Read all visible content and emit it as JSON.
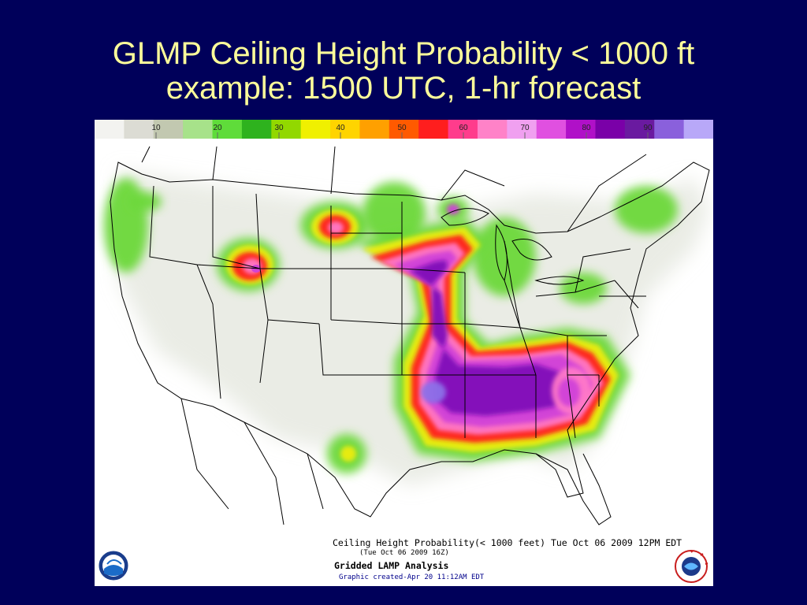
{
  "slide": {
    "title_line1": "GLMP Ceiling Height Probability < 1000 ft",
    "title_line2": "example: 1500 UTC, 1-hr forecast"
  },
  "colorbar": {
    "ticks": [
      "10",
      "20",
      "30",
      "40",
      "50",
      "60",
      "70",
      "80",
      "90"
    ],
    "colors": [
      "#f3f3f0",
      "#dcdcd4",
      "#c2c8b0",
      "#a7e28a",
      "#5fdc3a",
      "#2eb21e",
      "#92d800",
      "#f0f000",
      "#ffd400",
      "#ffa000",
      "#ff5a00",
      "#ff1e1e",
      "#ff3c8c",
      "#ff82c8",
      "#f0a0f0",
      "#e050e0",
      "#b010c8",
      "#7a00a8",
      "#6a1aa0",
      "#8a60dc",
      "#b8a8f8"
    ]
  },
  "map": {
    "colors": {
      "background": "#ffffff",
      "haze": "#d8dcd0",
      "green": "#6cd83a",
      "yellow": "#ecec10",
      "orange": "#ff9000",
      "red": "#ff2020",
      "pink": "#ff78c8",
      "magenta": "#d040d8",
      "purple": "#8010b8",
      "violet": "#8c70e8"
    }
  },
  "captions": {
    "line1": "Ceiling Height Probability(< 1000 feet) Tue Oct 06 2009 12PM EDT",
    "line2": "(Tue Oct 06 2009 16Z)",
    "line3": "Gridded LAMP Analysis",
    "line4": "Graphic created-Apr 20 11:12AM EDT"
  },
  "logos": {
    "noaa": "NOAA",
    "nws": "NATIONAL WEATHER SERVICE"
  }
}
